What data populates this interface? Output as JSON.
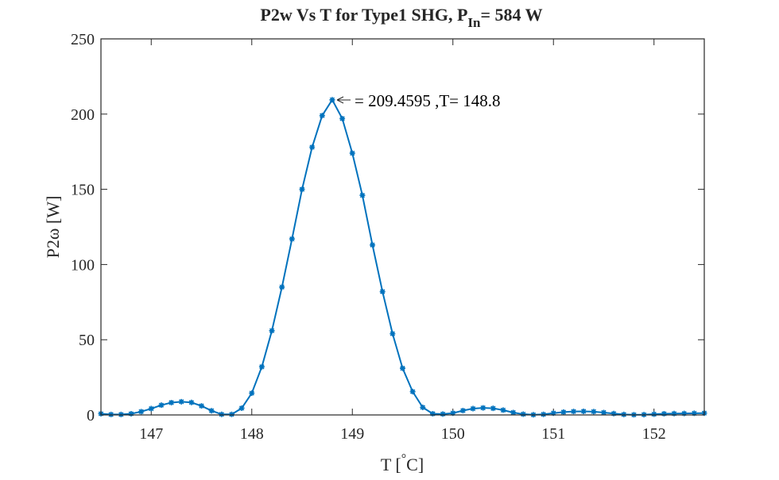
{
  "chart_data": {
    "type": "line",
    "title": "P2w Vs T for Type1 SHG, P",
    "title_subscript": "In",
    "title_suffix": "= 584 W",
    "xlabel": "T [ C]",
    "xlabel_parts": {
      "pre": "T [",
      "degree": "°",
      "post": "C]"
    },
    "ylabel": "P2ω [W]",
    "xlim": [
      146.5,
      152.5
    ],
    "ylim": [
      0,
      250
    ],
    "xticks": [
      147,
      148,
      149,
      150,
      151,
      152
    ],
    "yticks": [
      0,
      50,
      100,
      150,
      200,
      250
    ],
    "grid": false,
    "series": [
      {
        "color": "#0072BD",
        "marker": "asterisk",
        "x": [
          146.5,
          146.6,
          146.7,
          146.8,
          146.9,
          147.0,
          147.1,
          147.2,
          147.3,
          147.4,
          147.5,
          147.6,
          147.7,
          147.8,
          147.9,
          148.0,
          148.1,
          148.2,
          148.3,
          148.4,
          148.5,
          148.6,
          148.7,
          148.8,
          148.9,
          149.0,
          149.1,
          149.2,
          149.3,
          149.4,
          149.5,
          149.6,
          149.7,
          149.8,
          149.9,
          150.0,
          150.1,
          150.2,
          150.3,
          150.4,
          150.5,
          150.6,
          150.7,
          150.8,
          150.9,
          151.0,
          151.1,
          151.2,
          151.3,
          151.4,
          151.5,
          151.6,
          151.7,
          151.8,
          151.9,
          152.0,
          152.1,
          152.2,
          152.3,
          152.4,
          152.5
        ],
        "y": [
          0.8,
          0.3,
          0.3,
          0.8,
          2.2,
          4.2,
          6.5,
          8.2,
          8.8,
          8.3,
          6.0,
          2.8,
          0.4,
          0.4,
          4.5,
          14.5,
          32,
          56,
          85,
          117,
          150,
          178,
          199,
          209.5,
          197,
          174,
          146,
          113,
          82,
          54,
          31,
          15.5,
          5,
          0.8,
          0.6,
          1.2,
          2.9,
          4.2,
          4.7,
          4.4,
          3.2,
          1.6,
          0.5,
          0.1,
          0.4,
          1.2,
          1.9,
          2.3,
          2.4,
          2.2,
          1.6,
          0.9,
          0.3,
          0.1,
          0.2,
          0.5,
          0.8,
          0.9,
          1.0,
          1.1,
          1.2
        ]
      }
    ],
    "annotation": {
      "text": "= 209.4595 ,T= 148.8",
      "x": 148.8,
      "y": 209.4595
    }
  }
}
